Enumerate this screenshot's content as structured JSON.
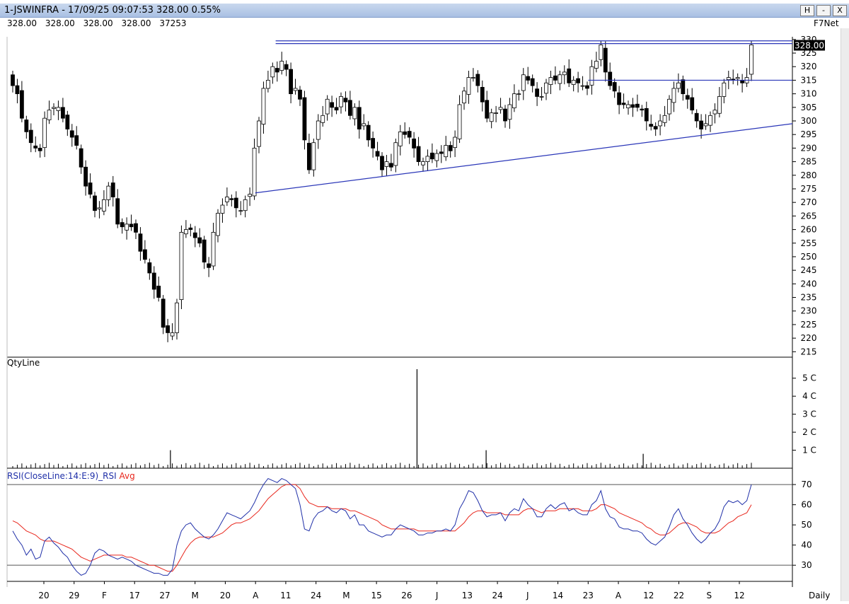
{
  "window": {
    "title": "1-JSWINFRA - 17/09/25 09:07:53 328.00 0.55%",
    "buttons": [
      "H",
      "-",
      "X"
    ]
  },
  "quote_line": [
    "328.00",
    "328.00",
    "328.00",
    "328.00",
    "37253"
  ],
  "brand": "F7Net",
  "colors": {
    "bull_candle": "#ffffff",
    "bear_candle": "#000000",
    "trendline": "#2a36b8",
    "rsi": "#1f2fa8",
    "rsi_avg": "#e8261c",
    "last_price_tag": "#000000",
    "titlebar": "#b8cbe9"
  },
  "chart_data": [
    {
      "type": "candlestick",
      "title": "",
      "y_ticks": [
        215,
        220,
        225,
        230,
        235,
        240,
        245,
        250,
        255,
        260,
        265,
        270,
        275,
        280,
        285,
        290,
        295,
        300,
        305,
        310,
        315,
        320,
        325,
        330
      ],
      "ylim": [
        213,
        331
      ],
      "last_price_label": "328.00",
      "x_tick_labels": [
        "20",
        "29",
        "F",
        "17",
        "27",
        "M",
        "20",
        "A",
        "11",
        "24",
        "M",
        "15",
        "26",
        "J",
        "13",
        "24",
        "J",
        "14",
        "23",
        "A",
        "12",
        "22",
        "S",
        "12"
      ],
      "period_label": "Daily",
      "trendlines": [
        {
          "from": [
            0.316,
            273.5
          ],
          "to": [
            1.0,
            299
          ]
        },
        {
          "from": [
            0.342,
            329.5
          ],
          "to": [
            1.0,
            329.5
          ]
        },
        {
          "from": [
            0.342,
            328.5
          ],
          "to": [
            1.0,
            328.5
          ]
        },
        {
          "from": [
            0.74,
            315
          ],
          "to": [
            1.0,
            315
          ]
        }
      ],
      "closes": [
        313,
        310,
        301,
        296,
        292,
        290,
        289,
        301,
        304,
        305,
        305,
        301,
        297,
        294,
        291,
        283,
        276,
        273,
        267,
        268,
        271,
        276,
        272,
        262,
        261,
        262,
        261,
        259,
        252,
        249,
        244,
        238,
        235,
        224,
        222,
        222,
        233,
        259,
        260,
        260,
        257,
        255,
        248,
        246,
        259,
        266,
        269,
        272,
        271,
        268,
        267,
        271,
        273,
        290,
        300,
        312,
        315,
        320,
        318,
        322,
        319,
        310,
        312,
        308,
        293,
        282,
        292,
        300,
        302,
        308,
        305,
        304,
        309,
        307,
        302,
        305,
        297,
        299,
        293,
        290,
        287,
        282,
        285,
        283,
        292,
        296,
        295,
        294,
        290,
        285,
        285,
        287,
        286,
        288,
        288,
        291,
        289,
        294,
        306,
        311,
        316,
        316,
        313,
        307,
        301,
        303,
        303,
        305,
        300,
        306,
        310,
        310,
        317,
        315,
        313,
        309,
        309,
        314,
        316,
        315,
        317,
        318,
        314,
        315,
        314,
        313,
        312,
        320,
        322,
        328,
        318,
        313,
        311,
        306,
        306,
        306,
        305,
        305,
        304,
        300,
        298,
        297,
        300,
        302,
        308,
        312,
        314,
        310,
        308,
        304,
        300,
        297,
        299,
        302,
        304,
        309,
        314,
        316,
        315,
        316,
        314,
        316,
        328
      ]
    },
    {
      "type": "bar",
      "title": "QtyLine",
      "y_ticks": [
        "1 C",
        "2 C",
        "3 C",
        "4 C",
        "5 C"
      ],
      "ylim": [
        0,
        5.5
      ],
      "spikes": [
        {
          "x": 0.522,
          "value": 5.5
        },
        {
          "x": 0.208,
          "value": 1.0
        },
        {
          "x": 0.61,
          "value": 1.0
        },
        {
          "x": 0.81,
          "value": 0.8
        }
      ]
    },
    {
      "type": "line",
      "title": "RSI(CloseLine:14:E:9)_RSI",
      "legend": [
        "RSI(CloseLine:14:E:9)_RSI",
        "Avg"
      ],
      "y_ticks": [
        30,
        40,
        50,
        60,
        70
      ],
      "ylim": [
        22,
        76
      ],
      "reference_lines": [
        70,
        30
      ],
      "rsi": [
        47,
        43,
        40,
        35,
        38,
        33,
        34,
        42,
        44,
        41,
        39,
        36,
        34,
        30,
        27,
        25,
        26,
        30,
        36,
        38,
        37,
        35,
        34,
        33,
        34,
        33,
        32,
        30,
        29,
        28,
        27,
        26,
        26,
        25,
        25,
        28,
        40,
        47,
        50,
        51,
        48,
        46,
        44,
        43,
        45,
        48,
        52,
        56,
        55,
        54,
        53,
        55,
        57,
        61,
        66,
        70,
        73,
        72,
        71,
        73,
        72,
        70,
        68,
        60,
        48,
        47,
        53,
        56,
        57,
        59,
        57,
        56,
        58,
        57,
        53,
        55,
        50,
        50,
        47,
        46,
        45,
        44,
        45,
        45,
        48,
        50,
        49,
        48,
        47,
        45,
        45,
        46,
        46,
        47,
        47,
        48,
        47,
        50,
        58,
        62,
        67,
        66,
        62,
        57,
        54,
        55,
        55,
        56,
        52,
        56,
        58,
        57,
        63,
        60,
        58,
        54,
        54,
        58,
        60,
        58,
        60,
        61,
        57,
        58,
        56,
        55,
        55,
        60,
        62,
        67,
        58,
        54,
        53,
        49,
        48,
        48,
        47,
        47,
        46,
        43,
        41,
        40,
        42,
        44,
        49,
        55,
        58,
        53,
        50,
        46,
        43,
        41,
        43,
        46,
        48,
        52,
        59,
        62,
        61,
        62,
        60,
        62,
        70
      ],
      "avg": [
        52,
        51,
        49,
        47,
        46,
        45,
        43,
        42,
        42,
        42,
        41,
        40,
        39,
        38,
        36,
        34,
        33,
        32,
        33,
        34,
        35,
        35,
        35,
        35,
        35,
        34,
        34,
        33,
        32,
        31,
        30,
        30,
        29,
        28,
        27,
        27,
        30,
        34,
        38,
        41,
        43,
        44,
        44,
        44,
        44,
        45,
        46,
        48,
        50,
        51,
        51,
        52,
        53,
        55,
        57,
        60,
        63,
        65,
        67,
        69,
        70,
        70,
        70,
        68,
        64,
        61,
        60,
        59,
        59,
        59,
        58,
        58,
        58,
        58,
        57,
        57,
        56,
        55,
        54,
        53,
        52,
        50,
        49,
        48,
        48,
        48,
        48,
        48,
        48,
        47,
        47,
        47,
        47,
        47,
        47,
        47,
        47,
        47,
        49,
        51,
        54,
        56,
        57,
        57,
        56,
        56,
        56,
        56,
        55,
        55,
        55,
        55,
        57,
        58,
        58,
        57,
        56,
        57,
        57,
        57,
        58,
        58,
        58,
        58,
        58,
        57,
        57,
        57,
        58,
        60,
        60,
        59,
        58,
        56,
        55,
        54,
        53,
        52,
        51,
        49,
        48,
        46,
        45,
        45,
        46,
        48,
        50,
        51,
        51,
        50,
        49,
        47,
        46,
        46,
        46,
        47,
        49,
        51,
        52,
        54,
        55,
        56,
        60
      ]
    }
  ]
}
